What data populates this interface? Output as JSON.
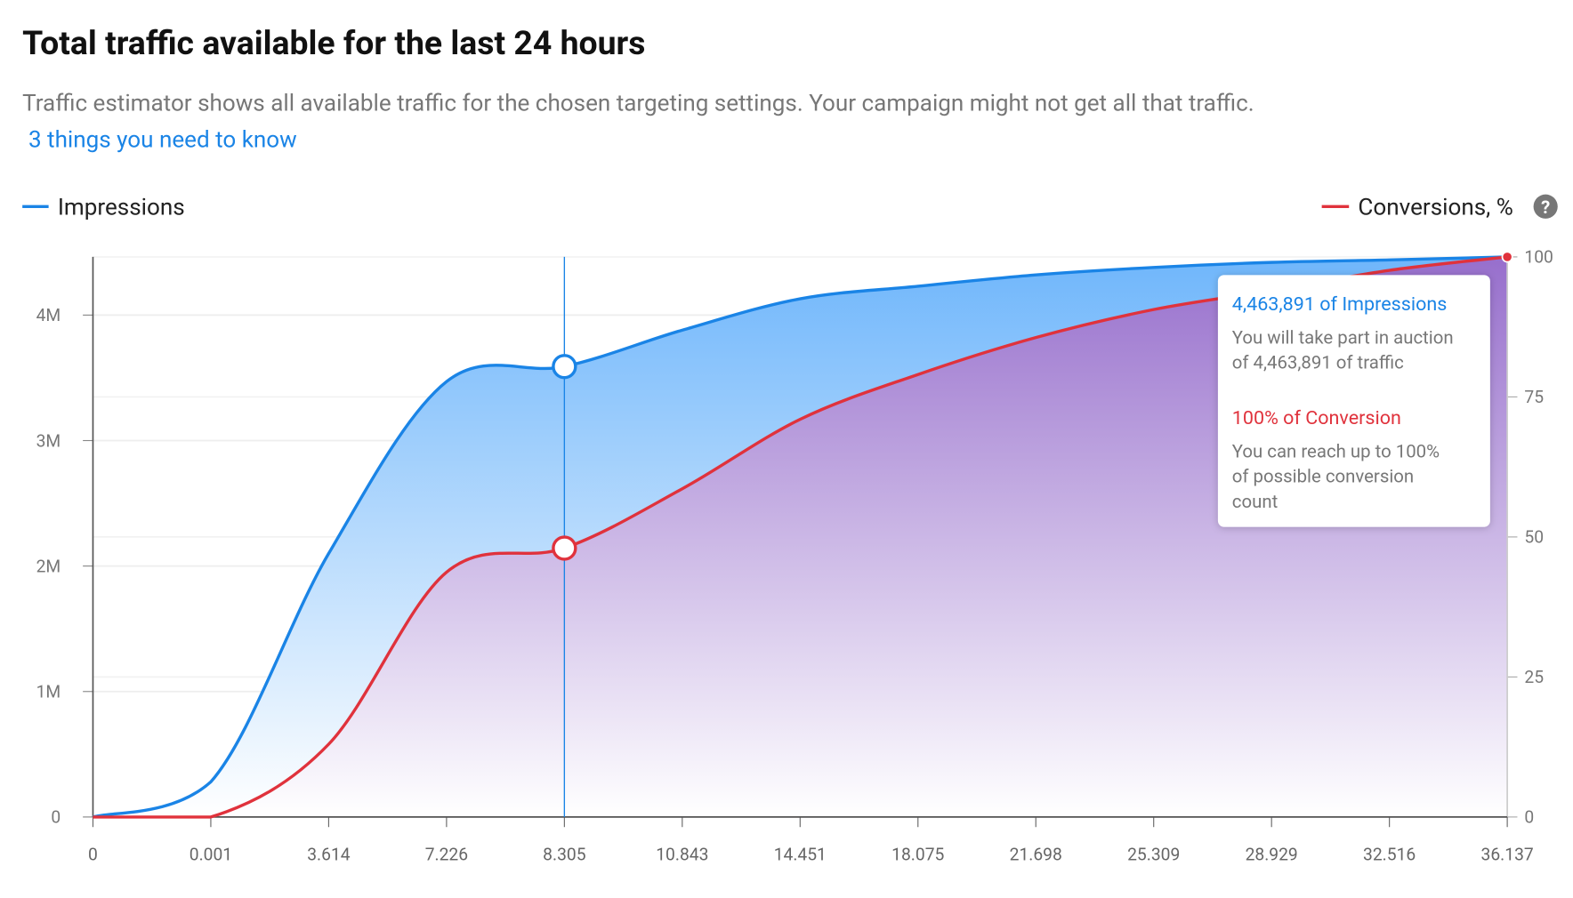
{
  "header": {
    "title": "Total traffic available for the last 24 hours",
    "subtitle": "Traffic estimator shows all available traffic for the chosen targeting settings. Your campaign might not get all that traffic.",
    "link": "3 things you need to know"
  },
  "help_icon": "?",
  "chart_data": {
    "type": "line",
    "categories": [
      "0",
      "0.001",
      "3.614",
      "7.226",
      "8.305",
      "10.843",
      "14.451",
      "18.075",
      "21.698",
      "25.309",
      "28.929",
      "32.516",
      "36.137"
    ],
    "series": [
      {
        "name": "Impressions",
        "color": "#1a84e6",
        "values": [
          0,
          280000,
          2100000,
          3470000,
          3590000,
          3880000,
          4130000,
          4230000,
          4320000,
          4380000,
          4420000,
          4440000,
          4463891
        ]
      },
      {
        "name": "Conversions, %",
        "color": "#e0323c",
        "axis": "y2",
        "values": [
          0,
          0,
          13,
          43.7,
          48,
          58.6,
          71,
          79,
          85.6,
          90.6,
          94,
          97.6,
          100
        ]
      }
    ],
    "ylim": [
      0,
      4463891
    ],
    "yticks": [
      0,
      {
        "value": 1000000,
        "label": "1M"
      },
      {
        "value": 2000000,
        "label": "2M"
      },
      {
        "value": 3000000,
        "label": "3M"
      },
      {
        "value": 4000000,
        "label": "4M"
      }
    ],
    "y2lim": [
      0,
      100
    ],
    "y2ticks": [
      0,
      25,
      50,
      75,
      100
    ],
    "grid": true
  },
  "tooltip": {
    "impressions_title": "4,463,891 of Impressions",
    "impressions_lines": [
      "You will take part in auction",
      "of 4,463,891 of traffic"
    ],
    "conversion_title": "100% of Conversion",
    "conversion_lines": [
      "You can reach up to 100%",
      "of possible conversion",
      "count"
    ]
  }
}
